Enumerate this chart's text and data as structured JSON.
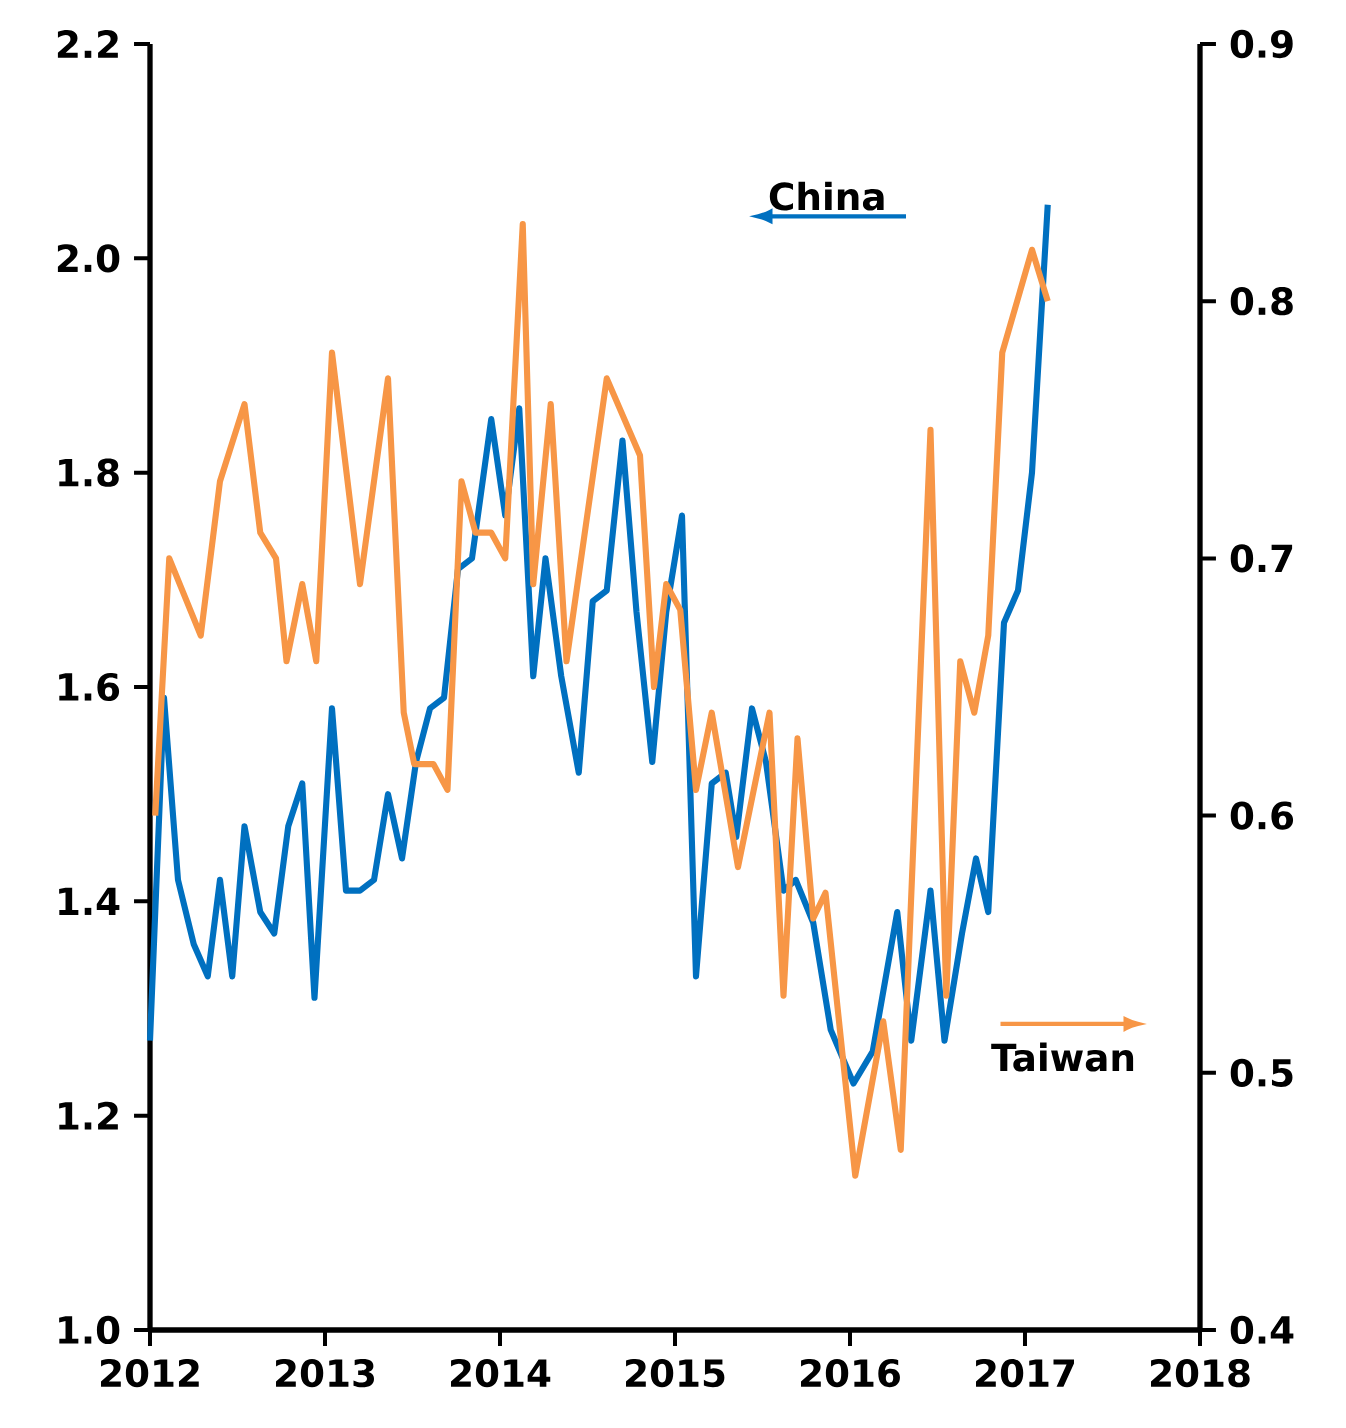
{
  "chart_data": {
    "type": "line",
    "xlim": [
      2012,
      2018
    ],
    "xticks": [
      2012,
      2013,
      2014,
      2015,
      2016,
      2017,
      2018
    ],
    "ylim": [
      1.0,
      2.2
    ],
    "yticks": [
      {
        "value": 1.0,
        "label": "1.0"
      },
      {
        "value": 1.2,
        "label": "1.2"
      },
      {
        "value": 1.4,
        "label": "1.4"
      },
      {
        "value": 1.6,
        "label": "1.6"
      },
      {
        "value": 1.8,
        "label": "1.8"
      },
      {
        "value": 2.0,
        "label": "2.0"
      },
      {
        "value": 2.2,
        "label": "2.2"
      }
    ],
    "y2lim": [
      0.4,
      0.9
    ],
    "y2ticks": [
      0.4,
      0.5,
      0.6,
      0.7,
      0.8,
      0.9
    ],
    "series": [
      {
        "name": "China",
        "color": "#0070c0",
        "axis": "y",
        "x": [
          2012.0,
          2012.08,
          2012.16,
          2012.25,
          2012.33,
          2012.4,
          2012.47,
          2012.54,
          2012.63,
          2012.71,
          2012.79,
          2012.87,
          2012.94,
          2013.04,
          2013.12,
          2013.2,
          2013.28,
          2013.36,
          2013.44,
          2013.52,
          2013.6,
          2013.68,
          2013.76,
          2013.84,
          2013.95,
          2014.03,
          2014.11,
          2014.19,
          2014.26,
          2014.35,
          2014.45,
          2014.53,
          2014.61,
          2014.7,
          2014.78,
          2014.87,
          2014.95,
          2015.04,
          2015.12,
          2015.21,
          2015.29,
          2015.35,
          2015.44,
          2015.52,
          2015.62,
          2015.69,
          2015.79,
          2015.89,
          2016.02,
          2016.13,
          2016.27,
          2016.35,
          2016.46,
          2016.54,
          2016.64,
          2016.72,
          2016.79,
          2016.88,
          2016.96,
          2017.04,
          2017.13
        ],
        "values": [
          1.27,
          1.59,
          1.42,
          1.36,
          1.33,
          1.42,
          1.33,
          1.47,
          1.39,
          1.37,
          1.47,
          1.51,
          1.31,
          1.58,
          1.41,
          1.41,
          1.42,
          1.5,
          1.44,
          1.53,
          1.58,
          1.59,
          1.71,
          1.72,
          1.85,
          1.76,
          1.86,
          1.61,
          1.72,
          1.61,
          1.52,
          1.68,
          1.69,
          1.83,
          1.67,
          1.53,
          1.67,
          1.76,
          1.33,
          1.51,
          1.52,
          1.46,
          1.58,
          1.53,
          1.41,
          1.42,
          1.38,
          1.28,
          1.23,
          1.26,
          1.39,
          1.27,
          1.41,
          1.27,
          1.37,
          1.44,
          1.39,
          1.66,
          1.69,
          1.8,
          2.05
        ]
      },
      {
        "name": "Taiwan",
        "color": "#f79646",
        "axis": "y2",
        "x": [
          2012.03,
          2012.11,
          2012.29,
          2012.4,
          2012.54,
          2012.63,
          2012.72,
          2012.78,
          2012.87,
          2012.95,
          2013.04,
          2013.2,
          2013.36,
          2013.45,
          2013.51,
          2013.62,
          2013.7,
          2013.78,
          2013.86,
          2013.95,
          2014.03,
          2014.13,
          2014.19,
          2014.29,
          2014.38,
          2014.61,
          2014.8,
          2014.88,
          2014.95,
          2015.03,
          2015.12,
          2015.21,
          2015.36,
          2015.54,
          2015.62,
          2015.7,
          2015.79,
          2015.86,
          2016.03,
          2016.19,
          2016.29,
          2016.46,
          2016.55,
          2016.63,
          2016.71,
          2016.79,
          2016.87,
          2017.04,
          2017.13
        ],
        "values": [
          0.6,
          0.7,
          0.67,
          0.73,
          0.76,
          0.71,
          0.7,
          0.66,
          0.69,
          0.66,
          0.78,
          0.69,
          0.77,
          0.64,
          0.62,
          0.62,
          0.61,
          0.73,
          0.71,
          0.71,
          0.7,
          0.83,
          0.69,
          0.76,
          0.66,
          0.77,
          0.74,
          0.65,
          0.69,
          0.68,
          0.61,
          0.64,
          0.58,
          0.64,
          0.53,
          0.63,
          0.56,
          0.57,
          0.46,
          0.52,
          0.47,
          0.75,
          0.53,
          0.66,
          0.64,
          0.67,
          0.78,
          0.82,
          0.8
        ]
      }
    ]
  }
}
